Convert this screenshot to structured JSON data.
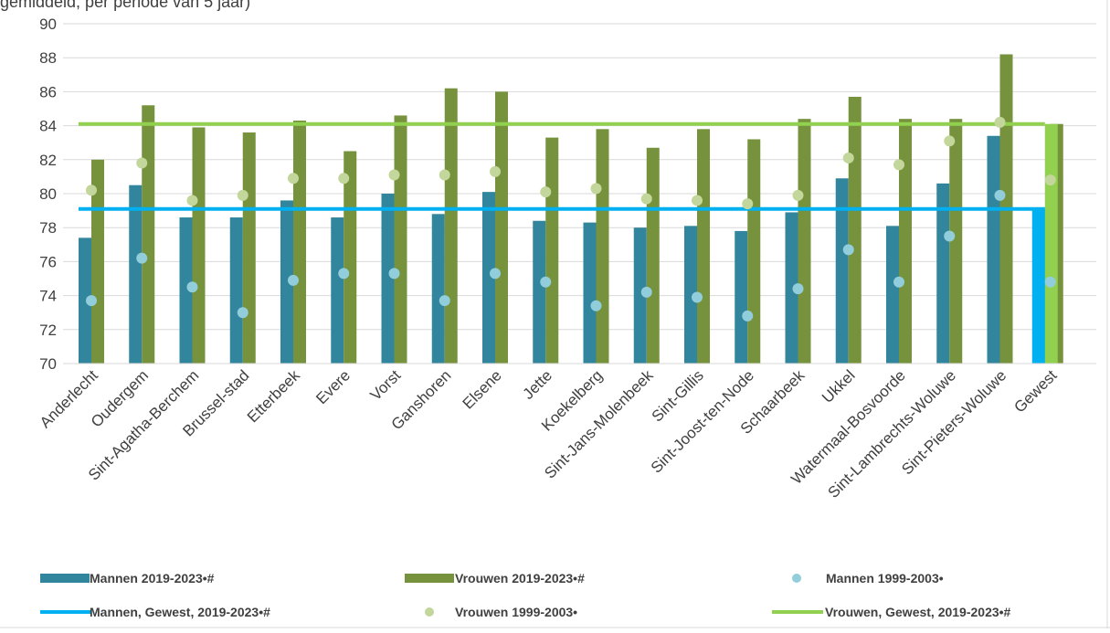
{
  "header": {
    "cut_title": "gemiddeld, per periode van 5 jaar)"
  },
  "colors": {
    "mannen_bar": "#31859c",
    "vrouwen_bar": "#76923c",
    "mannen_dot": "#92cddc",
    "vrouwen_dot": "#c3d69b",
    "mannen_line": "#00b0f0",
    "vrouwen_line": "#92d050",
    "grid": "#d9d9d9"
  },
  "chart_data": {
    "type": "bar",
    "ylim": [
      70,
      90
    ],
    "yticks": [
      70,
      72,
      74,
      76,
      78,
      80,
      82,
      84,
      86,
      88,
      90
    ],
    "grid": true,
    "legend_position": "bottom",
    "categories": [
      "Anderlecht",
      "Oudergem",
      "Sint-Agatha-Berchem",
      "Brussel-stad",
      "Etterbeek",
      "Evere",
      "Vorst",
      "Ganshoren",
      "Elsene",
      "Jette",
      "Koekelberg",
      "Sint-Jans-Molenbeek",
      "Sint-Gillis",
      "Sint-Joost-ten-Node",
      "Schaarbeek",
      "Ukkel",
      "Watermaal-Bosvoorde",
      "Sint-Lambrechts-Woluwe",
      "Sint-Pieters-Woluwe",
      "Gewest"
    ],
    "series": [
      {
        "name": "Mannen 2019-2023•#",
        "kind": "bar",
        "values": [
          77.4,
          80.5,
          78.6,
          78.6,
          79.6,
          78.6,
          80.0,
          78.8,
          80.1,
          78.4,
          78.3,
          78.0,
          78.1,
          77.8,
          78.9,
          80.9,
          78.1,
          80.6,
          83.4,
          79.1
        ]
      },
      {
        "name": "Vrouwen 2019-2023•#",
        "kind": "bar",
        "values": [
          82.0,
          85.2,
          83.9,
          83.6,
          84.3,
          82.5,
          84.6,
          86.2,
          86.0,
          83.3,
          83.8,
          82.7,
          83.8,
          83.2,
          84.4,
          85.7,
          84.4,
          84.4,
          88.2,
          84.1
        ]
      },
      {
        "name": "Mannen 1999-2003•",
        "kind": "dot",
        "values": [
          73.7,
          76.2,
          74.5,
          73.0,
          74.9,
          75.3,
          75.3,
          73.7,
          75.3,
          74.8,
          73.4,
          74.2,
          73.9,
          72.8,
          74.4,
          76.7,
          74.8,
          77.5,
          79.9,
          74.8
        ]
      },
      {
        "name": "Vrouwen 1999-2003•",
        "kind": "dot",
        "values": [
          80.2,
          81.8,
          79.6,
          79.9,
          80.9,
          80.9,
          81.1,
          81.1,
          81.3,
          80.1,
          80.3,
          79.7,
          79.6,
          79.4,
          79.9,
          82.1,
          81.7,
          83.1,
          84.2,
          80.8
        ]
      },
      {
        "name": "Mannen, Gewest, 2019-2023•#",
        "kind": "hline",
        "value": 79.1
      },
      {
        "name": "Vrouwen, Gewest, 2019-2023•#",
        "kind": "hline",
        "value": 84.1
      }
    ]
  }
}
